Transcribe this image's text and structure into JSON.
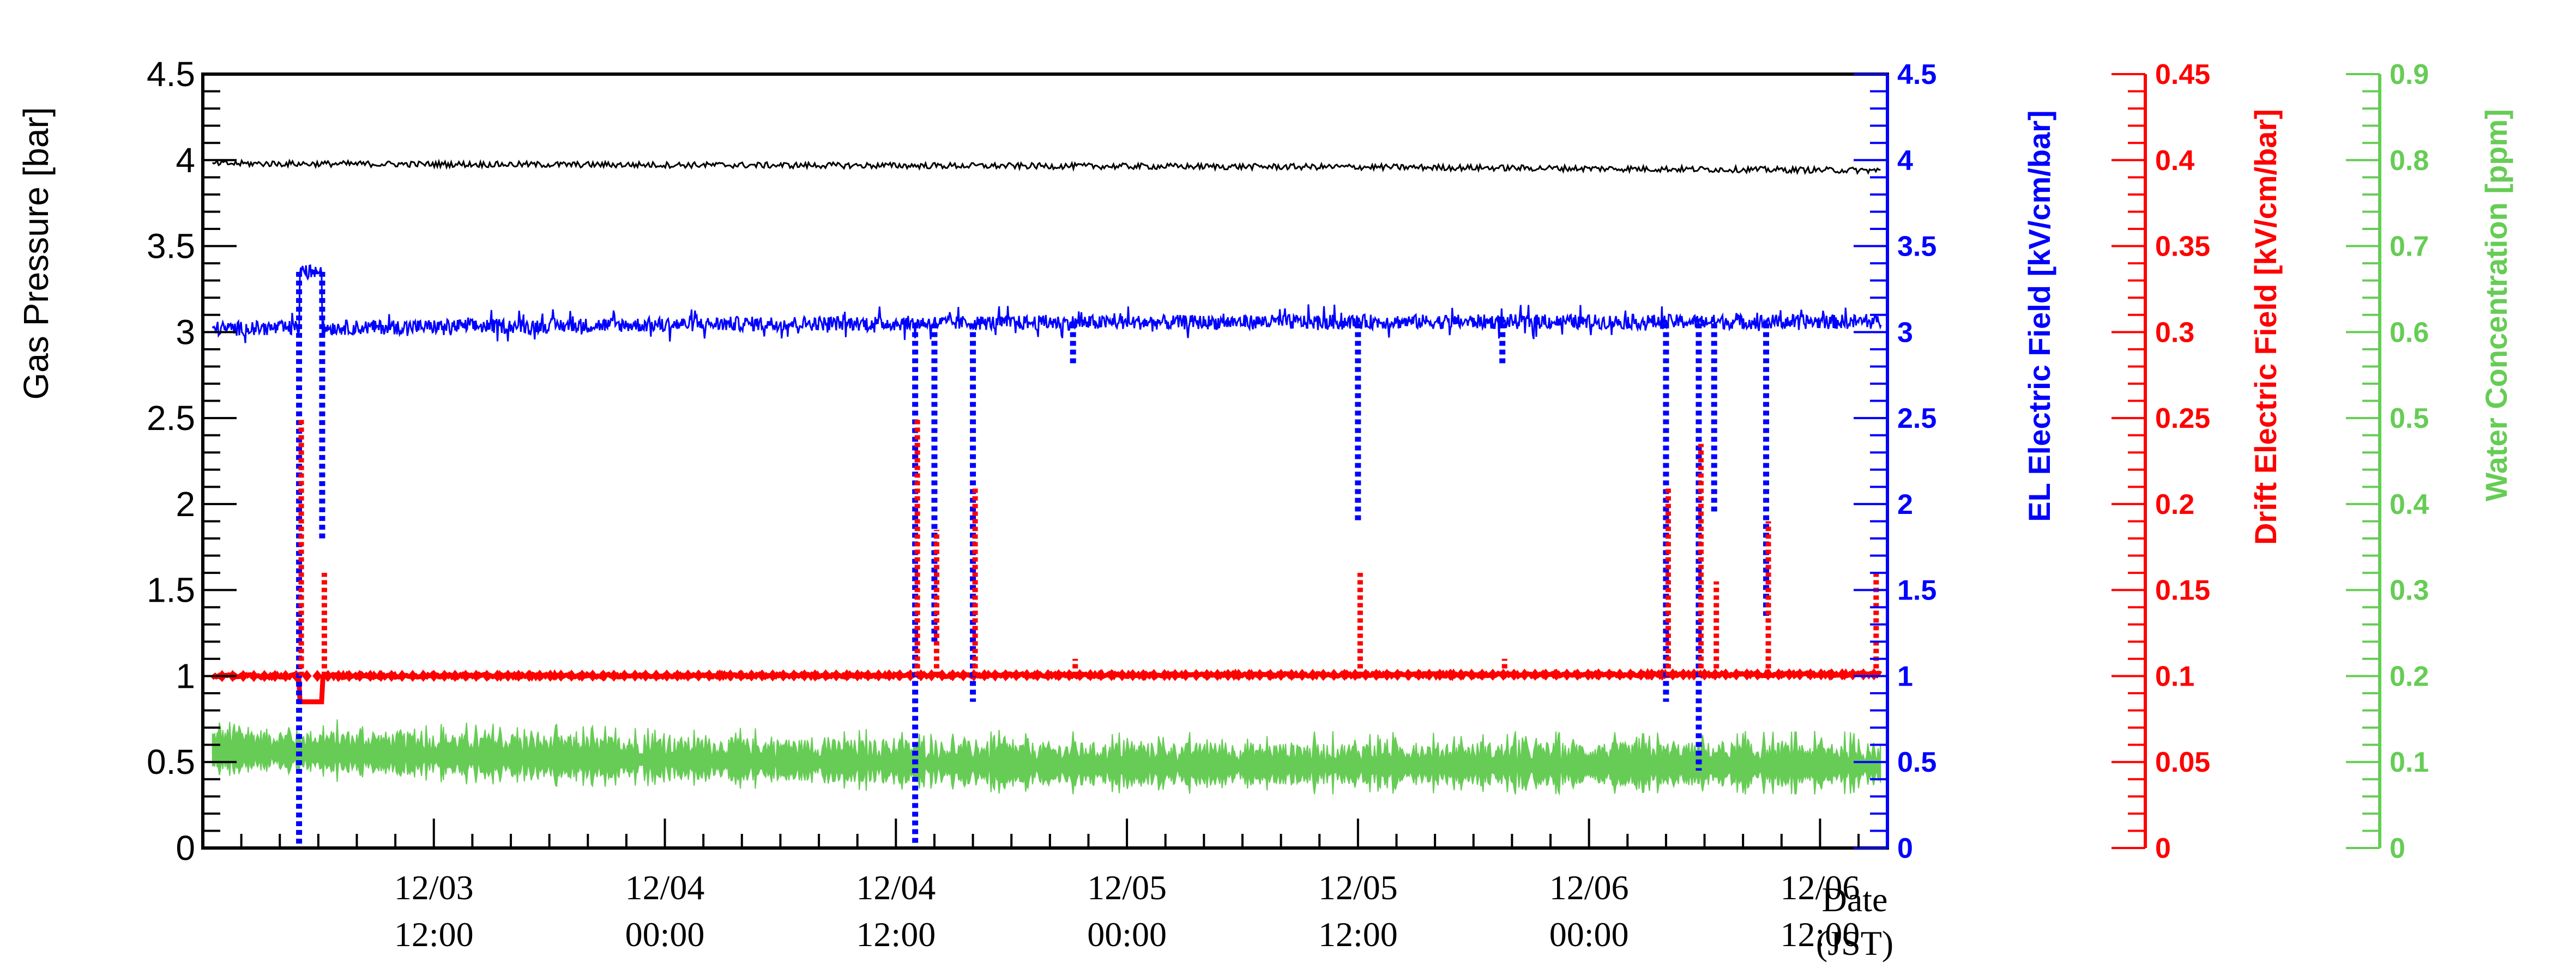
{
  "chart_data": {
    "type": "line",
    "x_axis": {
      "label_line1": "Date",
      "label_line2": "(JST)",
      "ticks": [
        {
          "line1": "12/03",
          "line2": "12:00",
          "t": 12
        },
        {
          "line1": "12/04",
          "line2": "00:00",
          "t": 24
        },
        {
          "line1": "12/04",
          "line2": "12:00",
          "t": 36
        },
        {
          "line1": "12/05",
          "line2": "00:00",
          "t": 48
        },
        {
          "line1": "12/05",
          "line2": "12:00",
          "t": 60
        },
        {
          "line1": "12/06",
          "line2": "00:00",
          "t": 72
        },
        {
          "line1": "12/06",
          "line2": "12:00",
          "t": 84
        }
      ]
    },
    "axes": {
      "pressure": {
        "label": "Gas Pressure [bar]",
        "ylim": [
          0,
          4.5
        ],
        "color": "#000000",
        "ticks": [
          "0",
          "0.5",
          "1",
          "1.5",
          "2",
          "2.5",
          "3",
          "3.5",
          "4",
          "4.5"
        ]
      },
      "el_field": {
        "label": "EL Electric Field [kV/cm/bar]",
        "ylim": [
          0,
          4.5
        ],
        "color": "#0000ff",
        "ticks": [
          "0",
          "0.5",
          "1",
          "1.5",
          "2",
          "2.5",
          "3",
          "3.5",
          "4",
          "4.5"
        ]
      },
      "drift_field": {
        "label": "Drift Electric Field [kV/cm/bar]",
        "ylim": [
          0,
          0.45
        ],
        "color": "#ff0000",
        "ticks": [
          "0",
          "0.05",
          "0.1",
          "0.15",
          "0.2",
          "0.25",
          "0.3",
          "0.35",
          "0.4",
          "0.45"
        ]
      },
      "water": {
        "label": "Water Concentration [ppm]",
        "ylim": [
          0,
          0.9
        ],
        "color": "#66cc55",
        "ticks": [
          "0",
          "0.1",
          "0.2",
          "0.3",
          "0.4",
          "0.5",
          "0.6",
          "0.7",
          "0.8",
          "0.9"
        ]
      }
    },
    "series": [
      {
        "axis": "pressure",
        "color": "#000000",
        "points": [
          [
            1,
            3.98
          ],
          [
            30,
            3.97
          ],
          [
            60,
            3.96
          ],
          [
            87,
            3.94
          ]
        ]
      },
      {
        "axis": "el_field",
        "color": "#0000ff",
        "points": [
          [
            1,
            3.02
          ],
          [
            30,
            3.05
          ],
          [
            60,
            3.06
          ],
          [
            87,
            3.06
          ]
        ]
      },
      {
        "axis": "drift_field",
        "color": "#ff0000",
        "points": [
          [
            1,
            0.1
          ],
          [
            87,
            0.101
          ]
        ]
      },
      {
        "axis": "water",
        "color": "#66cc55",
        "points": [
          [
            1,
            0.112
          ],
          [
            20,
            0.103
          ],
          [
            45,
            0.095
          ],
          [
            70,
            0.095
          ],
          [
            87,
            0.095
          ]
        ]
      }
    ],
    "events": {
      "el_field": [
        {
          "t": 5.0,
          "v": 0.0
        },
        {
          "t": 6.2,
          "v": 1.8
        },
        {
          "t": 37.0,
          "v": 0.0
        },
        {
          "t": 38.0,
          "v": 1.2
        },
        {
          "t": 40.0,
          "v": 0.85
        },
        {
          "t": 45.2,
          "v": 2.8
        },
        {
          "t": 60.0,
          "v": 1.9
        },
        {
          "t": 67.5,
          "v": 2.8
        },
        {
          "t": 76.0,
          "v": 0.85
        },
        {
          "t": 77.7,
          "v": 0.45
        },
        {
          "t": 78.5,
          "v": 1.95
        },
        {
          "t": 81.2,
          "v": 1.35
        }
      ],
      "drift_field": [
        {
          "t": 5.0,
          "v": 0.25
        },
        {
          "t": 6.2,
          "v": 0.16
        },
        {
          "t": 37.0,
          "v": 0.25
        },
        {
          "t": 38.0,
          "v": 0.185
        },
        {
          "t": 40.0,
          "v": 0.21
        },
        {
          "t": 45.2,
          "v": 0.11
        },
        {
          "t": 60.0,
          "v": 0.16
        },
        {
          "t": 67.5,
          "v": 0.11
        },
        {
          "t": 76.0,
          "v": 0.21
        },
        {
          "t": 77.7,
          "v": 0.235
        },
        {
          "t": 78.5,
          "v": 0.155
        },
        {
          "t": 81.2,
          "v": 0.19
        },
        {
          "t": 86.8,
          "v": 0.16
        }
      ]
    },
    "el_step": {
      "t0": 5.0,
      "t1": 6.2,
      "v": 3.35,
      "drift_v": 0.085
    }
  }
}
